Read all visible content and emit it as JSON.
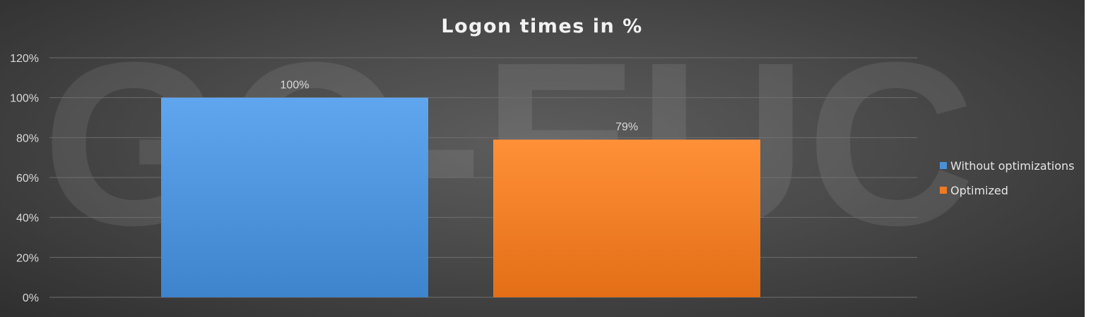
{
  "chart_data": {
    "type": "bar",
    "title": "Logon times in %",
    "xlabel": "",
    "ylabel": "",
    "categories": [
      ""
    ],
    "series": [
      {
        "name": "Without optimizations",
        "values": [
          100
        ],
        "label": "100%",
        "color": "#4a90d9"
      },
      {
        "name": "Optimized",
        "values": [
          79
        ],
        "label": "79%",
        "color": "#ef7a22"
      }
    ],
    "ylim": [
      0,
      120
    ],
    "yticks": [
      {
        "value": 0,
        "label": "0%"
      },
      {
        "value": 20,
        "label": "20%"
      },
      {
        "value": 40,
        "label": "40%"
      },
      {
        "value": 60,
        "label": "60%"
      },
      {
        "value": 80,
        "label": "80%"
      },
      {
        "value": 100,
        "label": "100%"
      },
      {
        "value": 120,
        "label": "120%"
      }
    ],
    "grid": true,
    "legend_position": "right",
    "watermark": "GO-EUC",
    "background_color": "#4a4a4a"
  }
}
